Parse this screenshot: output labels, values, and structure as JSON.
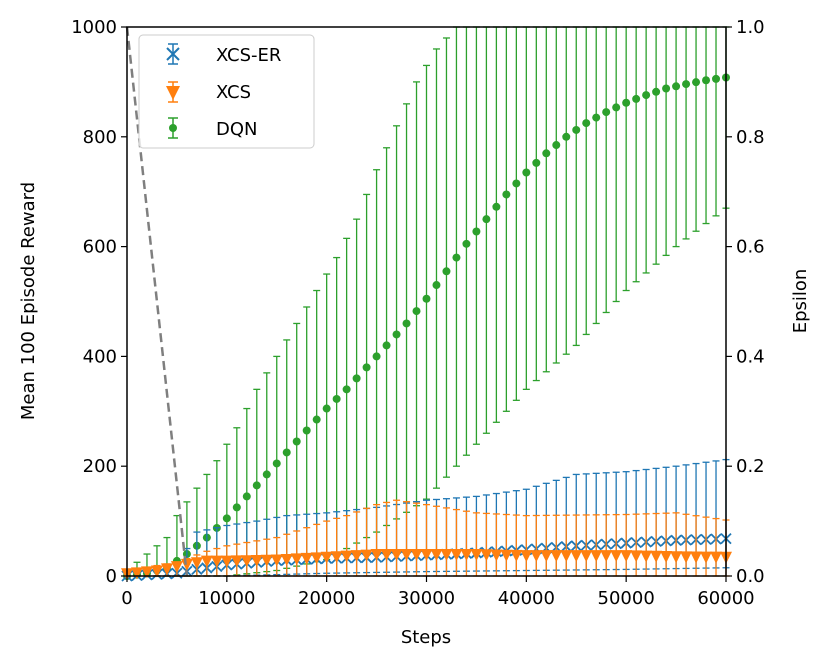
{
  "chart_data": {
    "type": "scatter",
    "title": "",
    "xlabel": "Steps",
    "ylabel": "Mean 100 Episode Reward",
    "y2label": "Epsilon",
    "xlim": [
      0,
      60000
    ],
    "ylim": [
      0,
      1000
    ],
    "y2lim": [
      0.0,
      1.0
    ],
    "xticks": [
      "0",
      "10000",
      "20000",
      "30000",
      "40000",
      "50000",
      "60000"
    ],
    "yticks": [
      "0",
      "200",
      "400",
      "600",
      "800",
      "1000"
    ],
    "y2ticks": [
      "0.0",
      "0.2",
      "0.4",
      "0.6",
      "0.8",
      "1.0"
    ],
    "legend_position": "top-left",
    "x_step": 1000,
    "grid": false,
    "series": [
      {
        "name": "XCS-ER",
        "marker": "x",
        "color": "#1f77b4",
        "mean_keypoints": [
          [
            0,
            0
          ],
          [
            5000,
            5
          ],
          [
            7000,
            12
          ],
          [
            10000,
            20
          ],
          [
            15000,
            28
          ],
          [
            20000,
            32
          ],
          [
            25000,
            34
          ],
          [
            30000,
            38
          ],
          [
            35000,
            42
          ],
          [
            40000,
            48
          ],
          [
            45000,
            55
          ],
          [
            50000,
            60
          ],
          [
            55000,
            65
          ],
          [
            60000,
            68
          ]
        ],
        "upper_keypoints": [
          [
            0,
            5
          ],
          [
            5000,
            20
          ],
          [
            7000,
            80
          ],
          [
            10000,
            92
          ],
          [
            13000,
            100
          ],
          [
            16000,
            110
          ],
          [
            20000,
            115
          ],
          [
            25000,
            125
          ],
          [
            30000,
            138
          ],
          [
            35000,
            145
          ],
          [
            40000,
            158
          ],
          [
            45000,
            185
          ],
          [
            50000,
            190
          ],
          [
            55000,
            200
          ],
          [
            60000,
            212
          ]
        ],
        "lower_keypoints": [
          [
            0,
            0
          ],
          [
            10000,
            0
          ],
          [
            20000,
            5
          ],
          [
            30000,
            8
          ],
          [
            40000,
            10
          ],
          [
            50000,
            12
          ],
          [
            60000,
            15
          ]
        ]
      },
      {
        "name": "XCS",
        "marker": "v",
        "color": "#ff7f0e",
        "mean_keypoints": [
          [
            0,
            5
          ],
          [
            3000,
            10
          ],
          [
            6000,
            22
          ],
          [
            8000,
            28
          ],
          [
            10000,
            28
          ],
          [
            15000,
            30
          ],
          [
            20000,
            35
          ],
          [
            25000,
            40
          ],
          [
            30000,
            40
          ],
          [
            35000,
            40
          ],
          [
            40000,
            38
          ],
          [
            45000,
            38
          ],
          [
            50000,
            38
          ],
          [
            55000,
            36
          ],
          [
            60000,
            35
          ]
        ],
        "upper_keypoints": [
          [
            0,
            10
          ],
          [
            5000,
            25
          ],
          [
            8000,
            45
          ],
          [
            10000,
            55
          ],
          [
            15000,
            70
          ],
          [
            20000,
            100
          ],
          [
            22000,
            110
          ],
          [
            25000,
            130
          ],
          [
            27000,
            138
          ],
          [
            30000,
            130
          ],
          [
            35000,
            115
          ],
          [
            40000,
            110
          ],
          [
            50000,
            112
          ],
          [
            55000,
            115
          ],
          [
            60000,
            102
          ]
        ],
        "lower_keypoints": [
          [
            0,
            0
          ],
          [
            10000,
            0
          ],
          [
            20000,
            0
          ],
          [
            30000,
            0
          ],
          [
            40000,
            0
          ],
          [
            50000,
            0
          ],
          [
            60000,
            0
          ]
        ]
      },
      {
        "name": "DQN",
        "marker": "o",
        "color": "#2ca02c",
        "mean_keypoints": [
          [
            0,
            0
          ],
          [
            2000,
            5
          ],
          [
            4000,
            15
          ],
          [
            6000,
            40
          ],
          [
            8000,
            70
          ],
          [
            10000,
            105
          ],
          [
            12000,
            145
          ],
          [
            14000,
            185
          ],
          [
            16000,
            225
          ],
          [
            18000,
            265
          ],
          [
            20000,
            305
          ],
          [
            22000,
            340
          ],
          [
            24000,
            380
          ],
          [
            26000,
            420
          ],
          [
            28000,
            460
          ],
          [
            30000,
            505
          ],
          [
            32000,
            555
          ],
          [
            34000,
            605
          ],
          [
            36000,
            650
          ],
          [
            38000,
            695
          ],
          [
            40000,
            735
          ],
          [
            42000,
            770
          ],
          [
            44000,
            800
          ],
          [
            46000,
            825
          ],
          [
            48000,
            845
          ],
          [
            50000,
            862
          ],
          [
            52000,
            876
          ],
          [
            54000,
            888
          ],
          [
            56000,
            896
          ],
          [
            58000,
            903
          ],
          [
            60000,
            908
          ]
        ],
        "upper_keypoints": [
          [
            0,
            10
          ],
          [
            2000,
            40
          ],
          [
            4000,
            70
          ],
          [
            5000,
            110
          ],
          [
            7000,
            160
          ],
          [
            9000,
            210
          ],
          [
            11000,
            270
          ],
          [
            13000,
            340
          ],
          [
            15000,
            400
          ],
          [
            17000,
            460
          ],
          [
            19000,
            520
          ],
          [
            21000,
            580
          ],
          [
            23000,
            650
          ],
          [
            25000,
            740
          ],
          [
            27000,
            820
          ],
          [
            29000,
            900
          ],
          [
            31000,
            960
          ],
          [
            33000,
            1000
          ],
          [
            60000,
            1000
          ]
        ],
        "lower_keypoints": [
          [
            0,
            0
          ],
          [
            6000,
            0
          ],
          [
            10000,
            0
          ],
          [
            15000,
            10
          ],
          [
            20000,
            30
          ],
          [
            25000,
            80
          ],
          [
            30000,
            140
          ],
          [
            35000,
            240
          ],
          [
            40000,
            340
          ],
          [
            45000,
            420
          ],
          [
            50000,
            520
          ],
          [
            55000,
            600
          ],
          [
            60000,
            670
          ]
        ]
      },
      {
        "name": "Epsilon",
        "line_style": "dashed",
        "color": "#7f7f7f",
        "axis": "right",
        "x": [
          0,
          6000
        ],
        "values": [
          1.0,
          0.0
        ]
      }
    ]
  }
}
